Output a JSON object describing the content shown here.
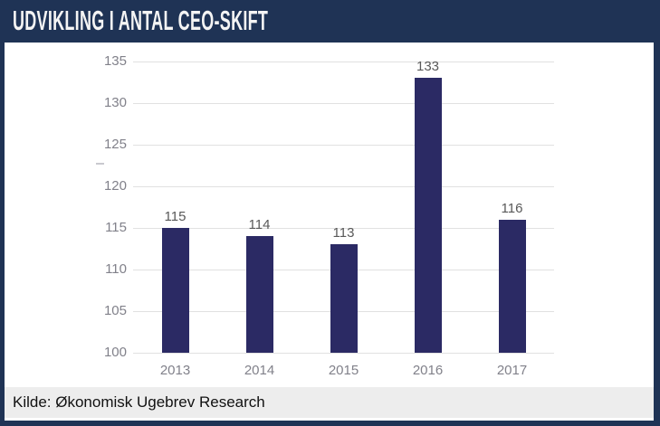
{
  "header": {
    "title": "UDVIKLING I ANTAL CEO-SKIFT"
  },
  "footer": {
    "source": "Kilde: Økonomisk Ugebrev Research"
  },
  "colors": {
    "header_bg": "#1f3355",
    "title_text": "#f4f4f4",
    "frame_border": "#1f3355",
    "bar": "#2b2a64",
    "gridline": "#e1e1e1",
    "axis_label": "#81818a",
    "data_label": "#595959",
    "footer_bg": "#ededed",
    "footer_text": "#111111"
  },
  "chart_data": {
    "type": "bar",
    "title": "UDVIKLING I ANTAL CEO-SKIFT",
    "categories": [
      "2013",
      "2014",
      "2015",
      "2016",
      "2017"
    ],
    "values": [
      115,
      114,
      113,
      133,
      116
    ],
    "xlabel": "",
    "ylabel": "",
    "ylim": [
      100,
      135
    ],
    "yticks": [
      100,
      105,
      110,
      115,
      120,
      125,
      130,
      135
    ],
    "grid": true,
    "legend": false,
    "data_labels_shown": true
  }
}
